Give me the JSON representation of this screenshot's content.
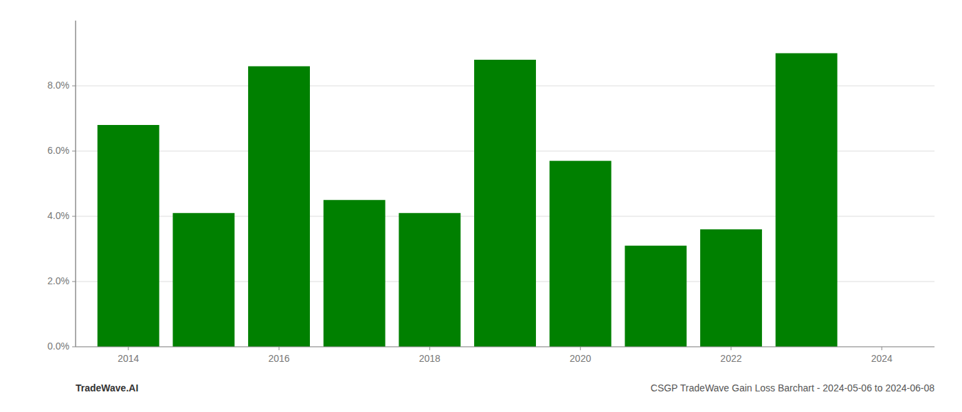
{
  "chart_data": {
    "type": "bar",
    "title": "CSGP TradeWave Gain Loss Barchart - 2024-05-06 to 2024-06-08",
    "annotations": [
      "TradeWave.AI"
    ],
    "x": [
      2014,
      2015,
      2016,
      2017,
      2018,
      2019,
      2020,
      2021,
      2022,
      2023
    ],
    "values": [
      0.068,
      0.041,
      0.086,
      0.045,
      0.041,
      0.088,
      0.057,
      0.031,
      0.036,
      0.09
    ],
    "color": "#008000",
    "xlim": [
      2013.3,
      2024.7
    ],
    "xticks": [
      2014,
      2016,
      2018,
      2020,
      2022,
      2024
    ],
    "ylim": [
      0,
      0.1
    ],
    "yticks": [
      {
        "value": 0.0,
        "label": "0.0%"
      },
      {
        "value": 0.02,
        "label": "2.0%"
      },
      {
        "value": 0.04,
        "label": "4.0%"
      },
      {
        "value": 0.06,
        "label": "6.0%"
      },
      {
        "value": 0.08,
        "label": "8.0%"
      }
    ],
    "grid": true
  }
}
